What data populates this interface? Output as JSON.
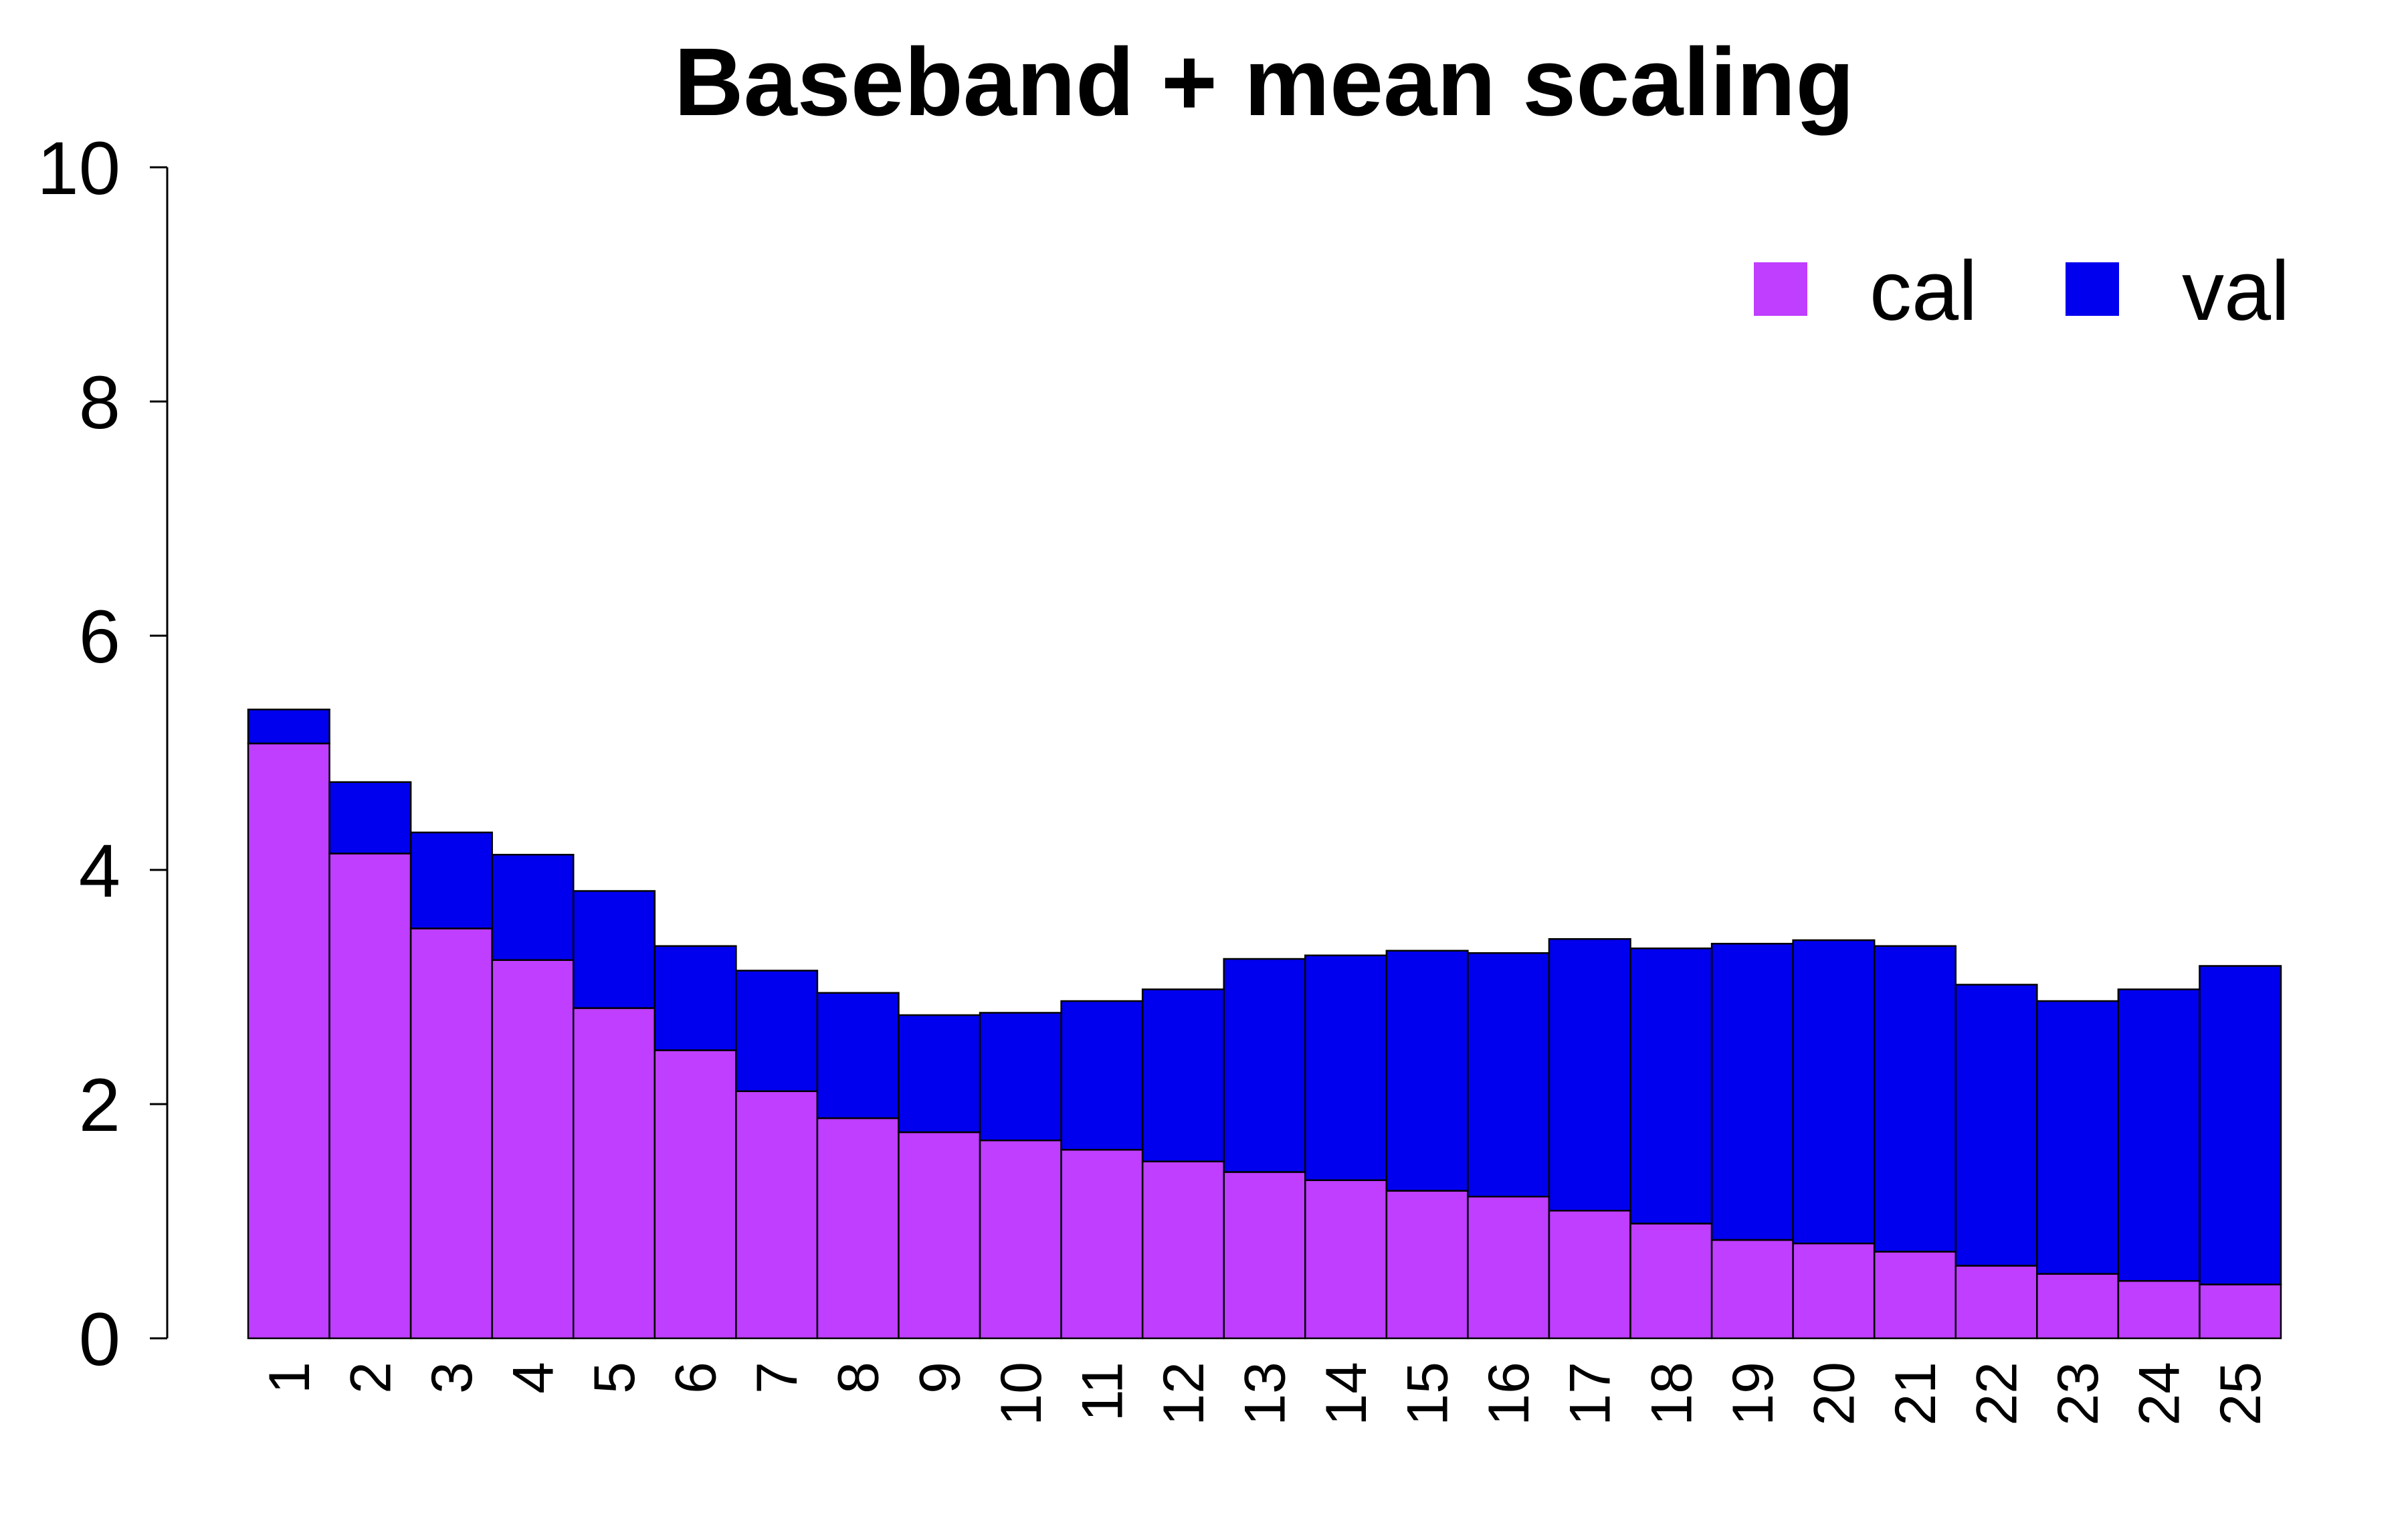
{
  "chart_data": {
    "type": "bar",
    "stacked": true,
    "title": "Baseband + mean scaling",
    "xlabel": "",
    "ylabel": "",
    "ylim": [
      0,
      10
    ],
    "yticks": [
      "0",
      "2",
      "4",
      "6",
      "8",
      "10"
    ],
    "categories": [
      "1",
      "2",
      "3",
      "4",
      "5",
      "6",
      "7",
      "8",
      "9",
      "10",
      "11",
      "12",
      "13",
      "14",
      "15",
      "16",
      "17",
      "18",
      "19",
      "20",
      "21",
      "22",
      "23",
      "24",
      "25"
    ],
    "series": [
      {
        "name": "cal",
        "color": "#bf3eff",
        "values": [
          5.08,
          4.14,
          3.5,
          3.23,
          2.82,
          2.46,
          2.11,
          1.88,
          1.76,
          1.69,
          1.61,
          1.51,
          1.42,
          1.35,
          1.26,
          1.21,
          1.09,
          0.98,
          0.84,
          0.81,
          0.74,
          0.62,
          0.55,
          0.49,
          0.46
        ]
      },
      {
        "name": "val",
        "color": "#0000ee",
        "values": [
          0.29,
          0.61,
          0.82,
          0.9,
          1.0,
          0.89,
          1.03,
          1.07,
          1.0,
          1.09,
          1.27,
          1.47,
          1.82,
          1.92,
          2.05,
          2.08,
          2.32,
          2.35,
          2.53,
          2.59,
          2.61,
          2.4,
          2.33,
          2.49,
          2.72
        ]
      }
    ],
    "legend_position": "top-right",
    "grid": false
  }
}
